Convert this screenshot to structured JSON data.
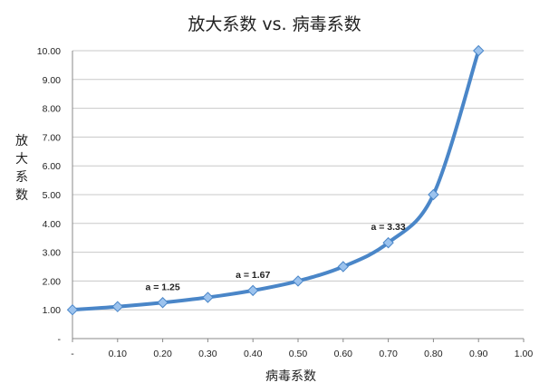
{
  "chart_data": {
    "type": "line",
    "title": "放大系数 vs. 病毒系数",
    "xlabel": "病毒系数",
    "ylabel": "放大系数",
    "xlim": [
      0,
      1.0
    ],
    "ylim": [
      0,
      10.0
    ],
    "x_ticks": [
      "-",
      "0.10",
      "0.20",
      "0.30",
      "0.40",
      "0.50",
      "0.60",
      "0.70",
      "0.80",
      "0.90",
      "1.00"
    ],
    "y_ticks": [
      "-",
      "1.00",
      "2.00",
      "3.00",
      "4.00",
      "5.00",
      "6.00",
      "7.00",
      "8.00",
      "9.00",
      "10.00"
    ],
    "grid": true,
    "series": [
      {
        "color": "#4a86c8",
        "marker_color": "#9cc3ee",
        "x": [
          0,
          0.1,
          0.2,
          0.3,
          0.4,
          0.5,
          0.6,
          0.7,
          0.8,
          0.9
        ],
        "values": [
          1.0,
          1.11,
          1.25,
          1.43,
          1.67,
          2.0,
          2.5,
          3.33,
          5.0,
          10.0
        ]
      }
    ],
    "annotations": [
      {
        "text": "a = 1.25",
        "x": 0.2,
        "y": 1.25
      },
      {
        "text": "a = 1.67",
        "x": 0.4,
        "y": 1.67
      },
      {
        "text": "a = 3.33",
        "x": 0.7,
        "y": 3.33
      }
    ]
  }
}
